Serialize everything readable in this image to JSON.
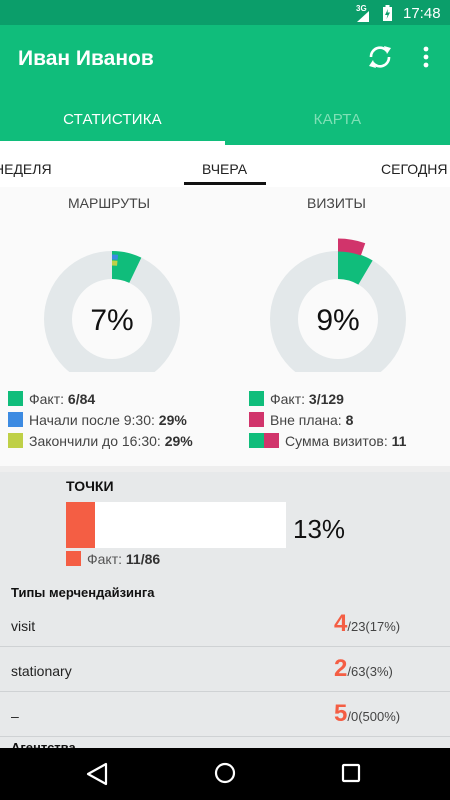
{
  "status_bar": {
    "network": "3G",
    "time": "17:48"
  },
  "app_bar": {
    "title": "Иван Иванов"
  },
  "tabs": [
    {
      "label": "СТАТИСТИКА",
      "active": true
    },
    {
      "label": "КАРТА",
      "active": false
    }
  ],
  "period_tabs": [
    {
      "label": "НЕДЕЛЯ"
    },
    {
      "label": "ВЧЕРА",
      "active": true
    },
    {
      "label": "СЕГОДНЯ"
    }
  ],
  "routes": {
    "title": "МАРШРУТЫ",
    "percent_text": "7%",
    "fact_fraction": 0.071,
    "started_after_fraction": 0.015,
    "finished_before_fraction": 0.015,
    "legend": [
      {
        "label": "Факт:",
        "value": "6/84",
        "color": "#10bd7b"
      },
      {
        "label": "Начали после 9:30:",
        "value": "29%",
        "color": "#3d8be2"
      },
      {
        "label": "Закончили до 16:30:",
        "value": "29%",
        "color": "#bfd047"
      }
    ]
  },
  "visits": {
    "title": "ВИЗИТЫ",
    "percent_text": "9%",
    "fact_fraction": 0.085,
    "extra_fraction": 0.055,
    "legend": [
      {
        "label": "Факт:",
        "value": "3/129",
        "color": "#10bd7b"
      },
      {
        "label": "Вне плана:",
        "value": "8",
        "color": "#d1346b"
      },
      {
        "label": "Сумма визитов:",
        "value": "11",
        "color": "#10bd7b",
        "color2": "#d1346b"
      }
    ]
  },
  "points": {
    "title": "ТОЧКИ",
    "percent_text": "13%",
    "fill_fraction": 0.13,
    "legend_label": "Факт:",
    "legend_value": "11/86",
    "color": "#f45e44"
  },
  "merch": {
    "header": "Типы мерчендайзинга",
    "rows": [
      {
        "name": "visit",
        "big": "4",
        "small": "/23(17%)"
      },
      {
        "name": "stationary",
        "big": "2",
        "small": "/63(3%)"
      },
      {
        "name": "–",
        "big": "5",
        "small": "/0(500%)"
      }
    ]
  },
  "agency_header": "Агентства"
}
